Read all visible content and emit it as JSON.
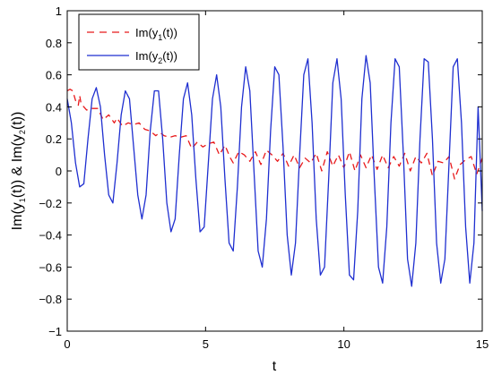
{
  "chart_data": {
    "type": "line",
    "xlabel": "t",
    "ylabel_parts": {
      "a": "Im(y",
      "a_sub": "1",
      "b": "(t)) & Im(y",
      "b_sub": "2",
      "c": "(t))"
    },
    "xlim": [
      0,
      15
    ],
    "ylim": [
      -1,
      1
    ],
    "xticks": [
      0,
      5,
      10,
      15
    ],
    "yticks": [
      -1,
      -0.8,
      -0.6,
      -0.4,
      -0.2,
      0,
      0.2,
      0.4,
      0.6,
      0.8,
      1
    ],
    "xtick_labels": [
      "0",
      "5",
      "10",
      "15"
    ],
    "ytick_labels": [
      "−1",
      "−0.8",
      "−0.6",
      "−0.4",
      "−0.2",
      "0",
      "0.2",
      "0.4",
      "0.6",
      "0.8",
      "1"
    ],
    "grid": false,
    "legend_position": "top-left",
    "series": [
      {
        "legend": {
          "pre": "Im(y",
          "sub": "1",
          "post": "(t))"
        },
        "color": "#e8191b",
        "style": "dashed",
        "x": [
          0,
          0.1,
          0.2,
          0.3,
          0.4,
          0.45,
          0.5,
          0.7,
          0.9,
          1.1,
          1.3,
          1.5,
          1.7,
          1.8,
          2.0,
          2.2,
          2.4,
          2.6,
          2.8,
          3.0,
          3.2,
          3.35,
          3.5,
          3.7,
          3.9,
          4.1,
          4.3,
          4.5,
          4.7,
          4.9,
          5.1,
          5.3,
          5.5,
          5.7,
          5.9,
          6.0,
          6.2,
          6.4,
          6.6,
          6.8,
          7.0,
          7.2,
          7.4,
          7.6,
          7.8,
          8.0,
          8.2,
          8.4,
          8.6,
          8.8,
          9.0,
          9.2,
          9.4,
          9.6,
          9.8,
          10.0,
          10.2,
          10.4,
          10.6,
          10.8,
          11.0,
          11.2,
          11.4,
          11.6,
          11.8,
          12.0,
          12.2,
          12.4,
          12.6,
          12.8,
          13.0,
          13.2,
          13.4,
          13.6,
          13.8,
          14.0,
          14.2,
          14.4,
          14.6,
          14.8,
          15.0
        ],
        "y": [
          0.5,
          0.51,
          0.5,
          0.44,
          0.41,
          0.47,
          0.42,
          0.38,
          0.39,
          0.39,
          0.32,
          0.35,
          0.3,
          0.33,
          0.28,
          0.3,
          0.29,
          0.3,
          0.26,
          0.25,
          0.22,
          0.24,
          0.22,
          0.21,
          0.22,
          0.21,
          0.22,
          0.14,
          0.18,
          0.15,
          0.17,
          0.18,
          0.1,
          0.16,
          0.08,
          0.05,
          0.12,
          0.1,
          0.06,
          0.12,
          0.04,
          0.13,
          0.1,
          0.06,
          0.11,
          0.03,
          0.1,
          0.02,
          0.08,
          0.05,
          0.11,
          0.0,
          0.12,
          0.03,
          0.1,
          0.02,
          0.12,
          0.0,
          0.1,
          0.02,
          0.1,
          0.01,
          0.1,
          0.02,
          0.09,
          0.03,
          0.11,
          0.0,
          0.09,
          0.05,
          0.11,
          -0.03,
          0.06,
          0.05,
          0.09,
          -0.05,
          0.04,
          0.07,
          0.09,
          -0.02,
          0.08
        ]
      },
      {
        "legend": {
          "pre": "Im(y",
          "sub": "2",
          "post": "(t))"
        },
        "color": "#1f2fd0",
        "style": "solid",
        "x": [
          0,
          0.15,
          0.3,
          0.45,
          0.6,
          0.75,
          0.9,
          1.05,
          1.2,
          1.35,
          1.5,
          1.65,
          1.8,
          1.95,
          2.1,
          2.25,
          2.4,
          2.55,
          2.7,
          2.85,
          3.0,
          3.15,
          3.3,
          3.45,
          3.6,
          3.75,
          3.9,
          4.05,
          4.2,
          4.35,
          4.5,
          4.65,
          4.8,
          4.95,
          5.1,
          5.25,
          5.4,
          5.55,
          5.7,
          5.85,
          6.0,
          6.15,
          6.3,
          6.45,
          6.6,
          6.75,
          6.9,
          7.05,
          7.2,
          7.35,
          7.5,
          7.65,
          7.8,
          7.95,
          8.1,
          8.25,
          8.4,
          8.55,
          8.7,
          8.85,
          9.0,
          9.15,
          9.3,
          9.45,
          9.6,
          9.75,
          9.9,
          10.05,
          10.2,
          10.35,
          10.5,
          10.65,
          10.8,
          10.95,
          11.1,
          11.25,
          11.4,
          11.55,
          11.7,
          11.85,
          12.0,
          12.15,
          12.3,
          12.45,
          12.6,
          12.75,
          12.9,
          13.05,
          13.2,
          13.35,
          13.5,
          13.65,
          13.8,
          13.95,
          14.1,
          14.25,
          14.4,
          14.55,
          14.7,
          14.85,
          15.0
        ],
        "y": [
          0.45,
          0.3,
          0.05,
          -0.1,
          -0.08,
          0.2,
          0.45,
          0.52,
          0.4,
          0.1,
          -0.15,
          -0.2,
          0.05,
          0.35,
          0.5,
          0.45,
          0.15,
          -0.15,
          -0.3,
          -0.15,
          0.25,
          0.5,
          0.5,
          0.2,
          -0.2,
          -0.38,
          -0.3,
          0.1,
          0.45,
          0.55,
          0.35,
          -0.05,
          -0.38,
          -0.35,
          0.05,
          0.45,
          0.6,
          0.4,
          -0.05,
          -0.45,
          -0.5,
          -0.1,
          0.4,
          0.65,
          0.5,
          0.0,
          -0.5,
          -0.6,
          -0.3,
          0.25,
          0.65,
          0.6,
          0.15,
          -0.4,
          -0.65,
          -0.45,
          0.1,
          0.6,
          0.7,
          0.3,
          -0.3,
          -0.65,
          -0.6,
          -0.05,
          0.55,
          0.7,
          0.45,
          -0.15,
          -0.65,
          -0.68,
          -0.25,
          0.45,
          0.72,
          0.55,
          -0.05,
          -0.6,
          -0.7,
          -0.35,
          0.3,
          0.7,
          0.65,
          0.1,
          -0.55,
          -0.72,
          -0.45,
          0.2,
          0.7,
          0.68,
          0.2,
          -0.45,
          -0.7,
          -0.55,
          0.05,
          0.65,
          0.7,
          0.3,
          -0.35,
          -0.7,
          -0.45,
          0.4,
          -0.25
        ]
      }
    ]
  }
}
